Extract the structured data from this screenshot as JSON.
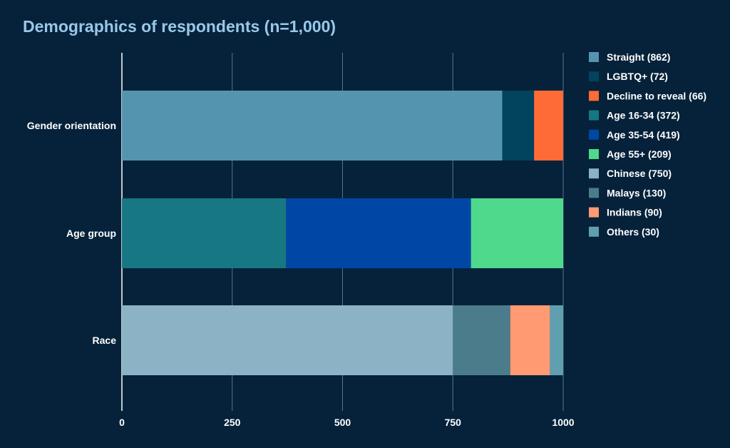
{
  "chart_data": {
    "type": "bar",
    "orientation": "horizontal",
    "stacked": true,
    "title": "Demographics of respondents (n=1,000)",
    "categories": [
      "Gender orientation",
      "Age group",
      "Race"
    ],
    "xlim": [
      0,
      1000
    ],
    "xticks": [
      0,
      250,
      500,
      750,
      1000
    ],
    "grid": "vertical",
    "legend_position": "right",
    "series": [
      {
        "name": "Straight (862)",
        "values": [
          862,
          0,
          0
        ],
        "color": "#5594ae"
      },
      {
        "name": "LGBTQ+ (72)",
        "values": [
          72,
          0,
          0
        ],
        "color": "#02435e"
      },
      {
        "name": "Decline to reveal (66)",
        "values": [
          66,
          0,
          0
        ],
        "color": "#ff6b36"
      },
      {
        "name": "Age 16-34 (372)",
        "values": [
          0,
          372,
          0
        ],
        "color": "#177782"
      },
      {
        "name": "Age 35-54 (419)",
        "values": [
          0,
          419,
          0
        ],
        "color": "#0047a5"
      },
      {
        "name": "Age 55+ (209)",
        "values": [
          0,
          209,
          0
        ],
        "color": "#4fd98d"
      },
      {
        "name": "Chinese (750)",
        "values": [
          0,
          0,
          750
        ],
        "color": "#8bb2c5"
      },
      {
        "name": "Malays (130)",
        "values": [
          0,
          0,
          130
        ],
        "color": "#4b7c8b"
      },
      {
        "name": "Indians (90)",
        "values": [
          0,
          0,
          90
        ],
        "color": "#ff9a72"
      },
      {
        "name": "Others (30)",
        "values": [
          0,
          0,
          30
        ],
        "color": "#5f9fb0"
      }
    ]
  }
}
